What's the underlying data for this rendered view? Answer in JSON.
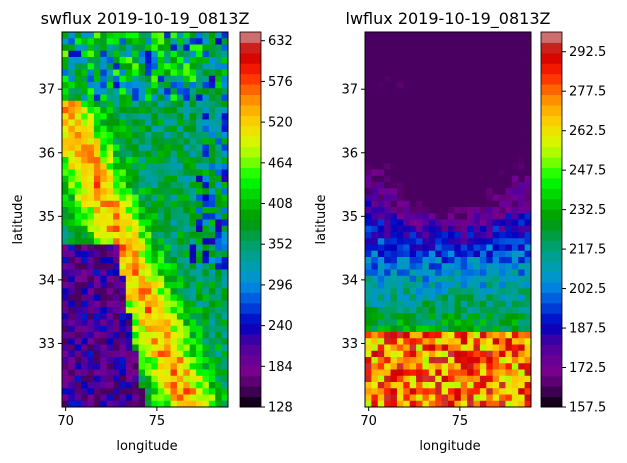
{
  "chart_data": [
    {
      "type": "heatmap",
      "title": "swflux 2019-10-19_0813Z",
      "xlabel": "longitude",
      "ylabel": "latitude",
      "xlim": [
        69.8,
        78.9
      ],
      "ylim": [
        32.0,
        37.9
      ],
      "xticks": [
        70,
        75
      ],
      "yticks": [
        33,
        34,
        35,
        36,
        37
      ],
      "colorbar": {
        "min": 128,
        "max": 644,
        "ticks": [
          128,
          184,
          240,
          296,
          352,
          408,
          464,
          520,
          576,
          632
        ],
        "tick_labels": [
          "128",
          "184",
          "240",
          "296",
          "352",
          "408",
          "464",
          "520",
          "576",
          "632"
        ],
        "colormap": "nipy_spectral"
      },
      "field": "swflux"
    },
    {
      "type": "heatmap",
      "title": "lwflux 2019-10-19_0813Z",
      "xlabel": "longitude",
      "ylabel": "latitude",
      "xlim": [
        69.8,
        78.9
      ],
      "ylim": [
        32.0,
        37.9
      ],
      "xticks": [
        70,
        75
      ],
      "yticks": [
        33,
        34,
        35,
        36,
        37
      ],
      "colorbar": {
        "min": 157.5,
        "max": 300,
        "ticks": [
          157.5,
          172.5,
          187.5,
          202.5,
          217.5,
          232.5,
          247.5,
          262.5,
          277.5,
          292.5
        ],
        "tick_labels": [
          "157.5",
          "172.5",
          "187.5",
          "202.5",
          "217.5",
          "232.5",
          "247.5",
          "262.5",
          "277.5",
          "292.5"
        ],
        "colormap": "nipy_spectral"
      },
      "field": "lwflux"
    }
  ]
}
